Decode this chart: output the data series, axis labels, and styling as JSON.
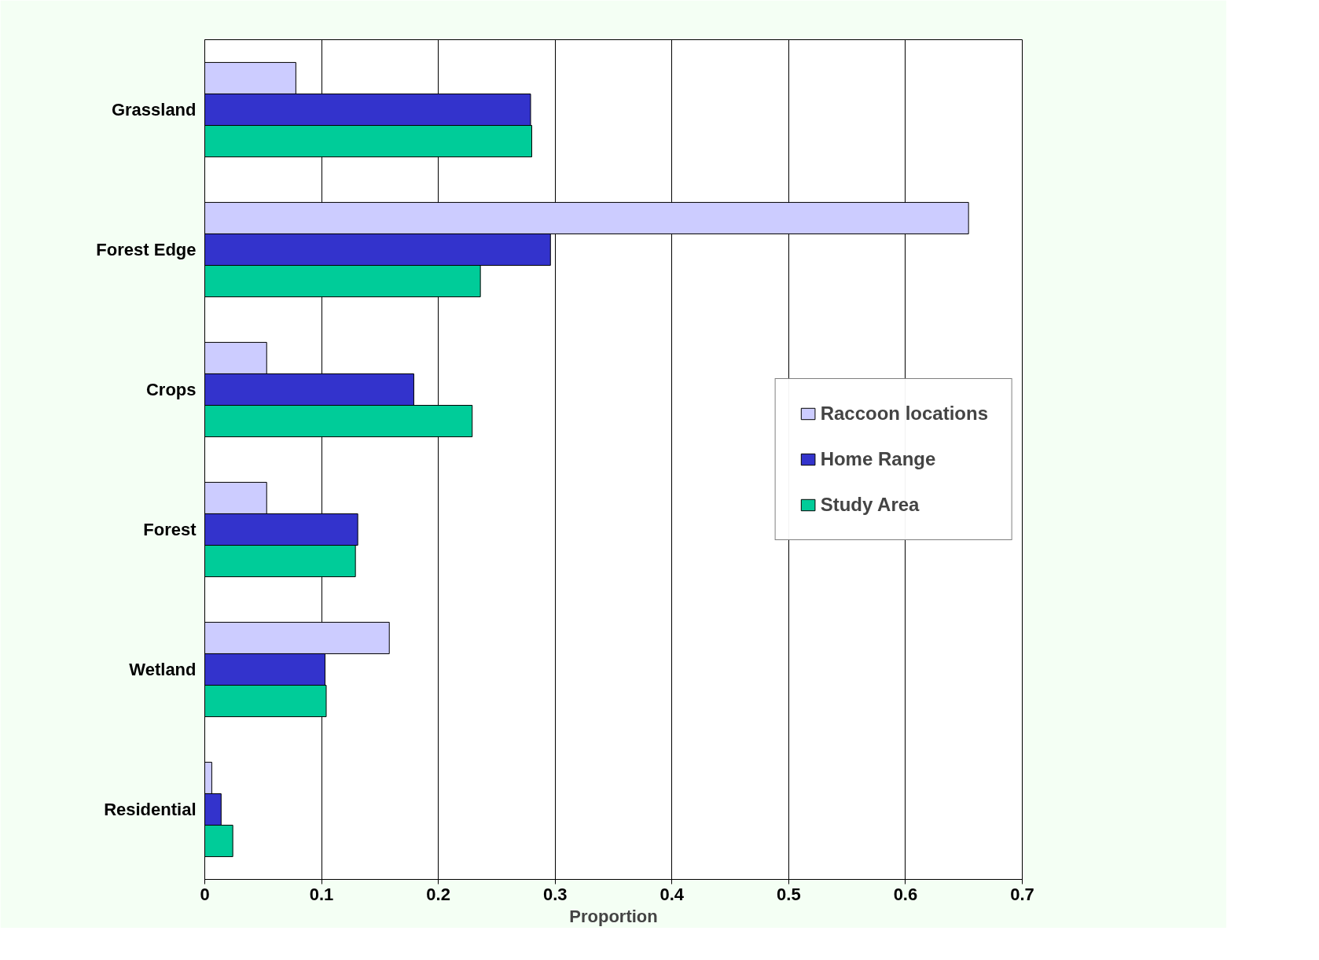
{
  "chart_data": {
    "type": "bar",
    "orientation": "horizontal",
    "xlabel": "Proportion",
    "categories": [
      "Grassland",
      "Forest Edge",
      "Crops",
      "Forest",
      "Wetland",
      "Residential"
    ],
    "series": [
      {
        "name": "Raccoon locations",
        "color": "#ccccff",
        "values": [
          0.078,
          0.654,
          0.053,
          0.053,
          0.158,
          0.006
        ]
      },
      {
        "name": "Home Range",
        "color": "#3333cc",
        "values": [
          0.279,
          0.296,
          0.179,
          0.131,
          0.103,
          0.014
        ]
      },
      {
        "name": "Study Area",
        "color": "#00cc99",
        "values": [
          0.28,
          0.236,
          0.229,
          0.129,
          0.104,
          0.024
        ]
      }
    ],
    "xlim": [
      0,
      0.7
    ],
    "xticks": [
      0,
      0.1,
      0.2,
      0.3,
      0.4,
      0.5,
      0.6,
      0.7
    ],
    "grid": "x",
    "legend": "right"
  }
}
